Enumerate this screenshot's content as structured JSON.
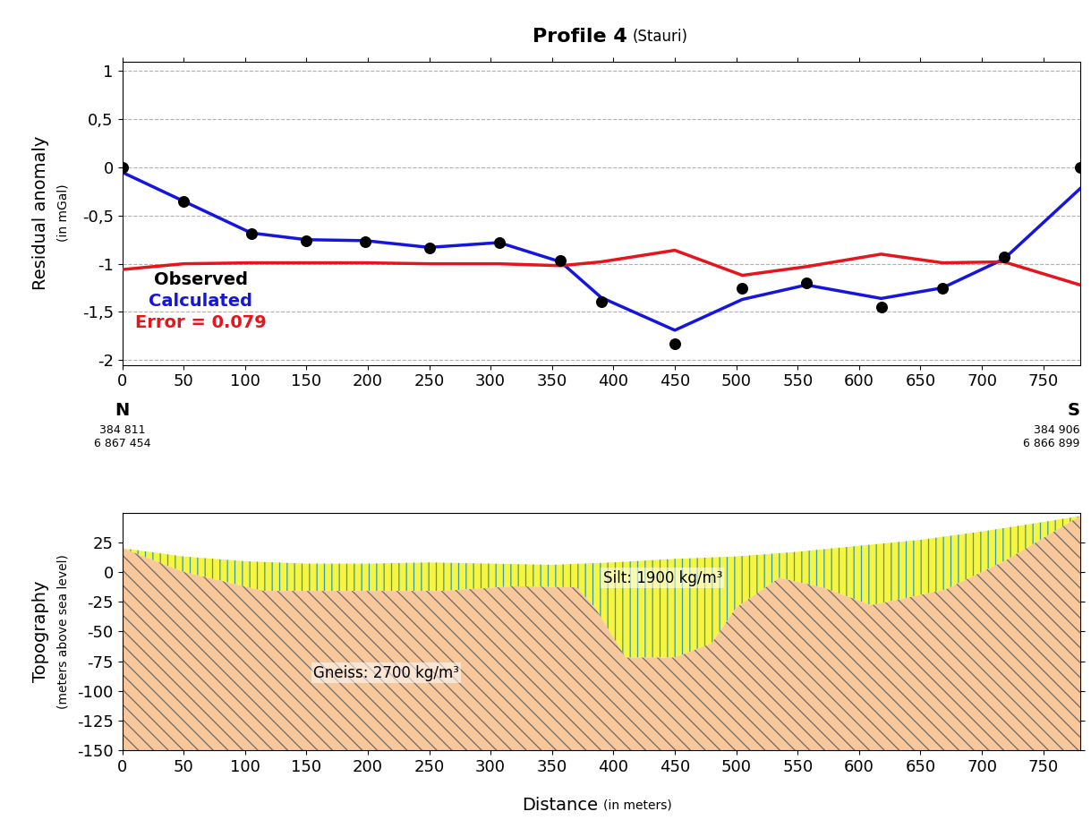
{
  "chart_data": [
    {
      "type": "line",
      "title": "Profile 4",
      "subtitle": "(Stauri)",
      "y_label": "Residual anomaly",
      "y_label_note": "(in mGal)",
      "x": [
        0,
        50,
        105,
        150,
        198,
        250,
        307,
        357,
        390,
        450,
        505,
        557,
        618,
        668,
        718,
        780
      ],
      "series": [
        {
          "name": "Observed",
          "type": "scatter",
          "color": "#000000",
          "marker": "o",
          "values": [
            0.0,
            -0.35,
            -0.69,
            -0.76,
            -0.77,
            -0.84,
            -0.78,
            -0.97,
            -1.39,
            -1.83,
            -1.25,
            -1.2,
            -1.45,
            -1.25,
            -0.93,
            0.0
          ]
        },
        {
          "name": "Calculated",
          "type": "line",
          "color": "#1515e0",
          "line_style": "solid",
          "values": [
            -0.05,
            -0.35,
            -0.68,
            -0.75,
            -0.76,
            -0.83,
            -0.78,
            -0.98,
            -1.35,
            -1.69,
            -1.37,
            -1.22,
            -1.36,
            -1.25,
            -0.95,
            -0.22
          ]
        },
        {
          "name": "Error = 0.079",
          "type": "line",
          "color": "#e8141c",
          "line_style": "solid",
          "values": [
            -1.06,
            -1.0,
            -0.99,
            -0.99,
            -0.99,
            -1.0,
            -1.0,
            -1.02,
            -0.98,
            -0.86,
            -1.12,
            -1.03,
            -0.9,
            -0.99,
            -0.98,
            -1.22
          ]
        }
      ],
      "xlim": [
        0,
        780
      ],
      "xticks": [
        0,
        50,
        100,
        150,
        200,
        250,
        300,
        350,
        400,
        450,
        500,
        550,
        600,
        650,
        700,
        750
      ],
      "ylim": [
        -2.05,
        1.1
      ],
      "yticks": [
        1,
        {
          "value": 0.5,
          "label": "0,5"
        },
        0,
        {
          "value": -0.5,
          "label": "-0,5"
        },
        -1,
        {
          "value": -1.5,
          "label": "-1,5"
        },
        -2
      ],
      "grid": true
    },
    {
      "type": "cross_section",
      "y_label": "Topography",
      "y_label_note": "(meters above sea level)",
      "x_label": "Distance",
      "x_label_note": "(in meters)",
      "ends": [
        {
          "label": "N",
          "coords": [
            "384 811",
            "6 867 454"
          ]
        },
        {
          "label": "S",
          "coords": [
            "384 906",
            "6 866 899"
          ]
        }
      ],
      "surface": {
        "x": [
          0,
          50,
          100,
          150,
          200,
          250,
          300,
          350,
          400,
          450,
          500,
          550,
          600,
          650,
          700,
          750,
          780
        ],
        "values": [
          20,
          13,
          9,
          7,
          7,
          8,
          7,
          6,
          8,
          11,
          13,
          17,
          22,
          27,
          34,
          42,
          47
        ]
      },
      "bedrock": {
        "x": [
          0,
          50,
          115,
          200,
          260,
          320,
          370,
          385,
          410,
          450,
          480,
          500,
          535,
          570,
          610,
          670,
          720,
          780
        ],
        "values": [
          20,
          0,
          -16,
          -16,
          -16,
          -12,
          -13,
          -30,
          -72,
          -72,
          -60,
          -30,
          -5,
          -13,
          -28,
          -15,
          10,
          47
        ]
      },
      "layers": [
        {
          "name": "Silt: 1900 kg/m³",
          "color": "#f5f542"
        },
        {
          "name": "Gneiss: 2700 kg/m³",
          "color": "#f8c79a"
        }
      ],
      "xlim": [
        0,
        780
      ],
      "xticks": [
        0,
        50,
        100,
        150,
        200,
        250,
        300,
        350,
        400,
        450,
        500,
        550,
        600,
        650,
        700,
        750
      ],
      "ylim": [
        -150,
        50
      ],
      "yticks": [
        25,
        0,
        -25,
        -50,
        -75,
        -100,
        -125,
        -150
      ]
    }
  ]
}
